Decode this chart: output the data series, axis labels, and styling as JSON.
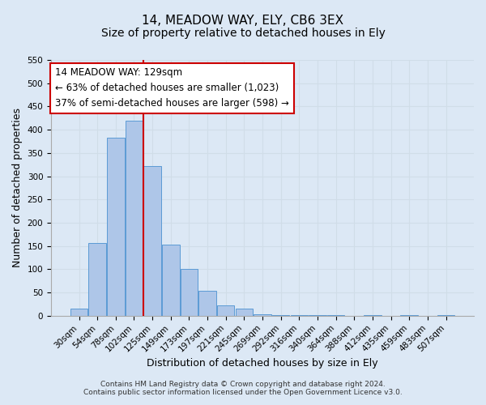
{
  "title": "14, MEADOW WAY, ELY, CB6 3EX",
  "subtitle": "Size of property relative to detached houses in Ely",
  "xlabel": "Distribution of detached houses by size in Ely",
  "ylabel": "Number of detached properties",
  "bin_labels": [
    "30sqm",
    "54sqm",
    "78sqm",
    "102sqm",
    "125sqm",
    "149sqm",
    "173sqm",
    "197sqm",
    "221sqm",
    "245sqm",
    "269sqm",
    "292sqm",
    "316sqm",
    "340sqm",
    "364sqm",
    "388sqm",
    "412sqm",
    "435sqm",
    "459sqm",
    "483sqm",
    "507sqm"
  ],
  "bar_heights": [
    15,
    157,
    383,
    420,
    322,
    153,
    100,
    54,
    22,
    15,
    3,
    2,
    1,
    1,
    1,
    0,
    1,
    0,
    1,
    0,
    2
  ],
  "bar_color": "#aec6e8",
  "bar_edge_color": "#5b9bd5",
  "grid_color": "#d0dde8",
  "background_color": "#dce8f5",
  "vline_x": 4,
  "vline_color": "#cc0000",
  "annotation_text": "14 MEADOW WAY: 129sqm\n← 63% of detached houses are smaller (1,023)\n37% of semi-detached houses are larger (598) →",
  "annotation_box_color": "#ffffff",
  "annotation_box_edge": "#cc0000",
  "ylim": [
    0,
    550
  ],
  "yticks": [
    0,
    50,
    100,
    150,
    200,
    250,
    300,
    350,
    400,
    450,
    500,
    550
  ],
  "footer_line1": "Contains HM Land Registry data © Crown copyright and database right 2024.",
  "footer_line2": "Contains public sector information licensed under the Open Government Licence v3.0.",
  "title_fontsize": 11,
  "subtitle_fontsize": 10,
  "axis_label_fontsize": 9,
  "tick_fontsize": 7.5,
  "annotation_fontsize": 8.5,
  "footer_fontsize": 6.5
}
